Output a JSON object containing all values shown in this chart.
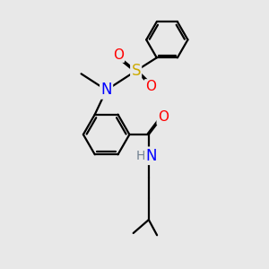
{
  "background_color": "#e8e8e8",
  "bond_color": "#000000",
  "bond_width": 1.6,
  "colors": {
    "N": "#0000ff",
    "O": "#ff0000",
    "S": "#ccaa00",
    "C": "#000000",
    "H": "#708090"
  },
  "figsize": [
    3.0,
    3.0
  ],
  "dpi": 100
}
